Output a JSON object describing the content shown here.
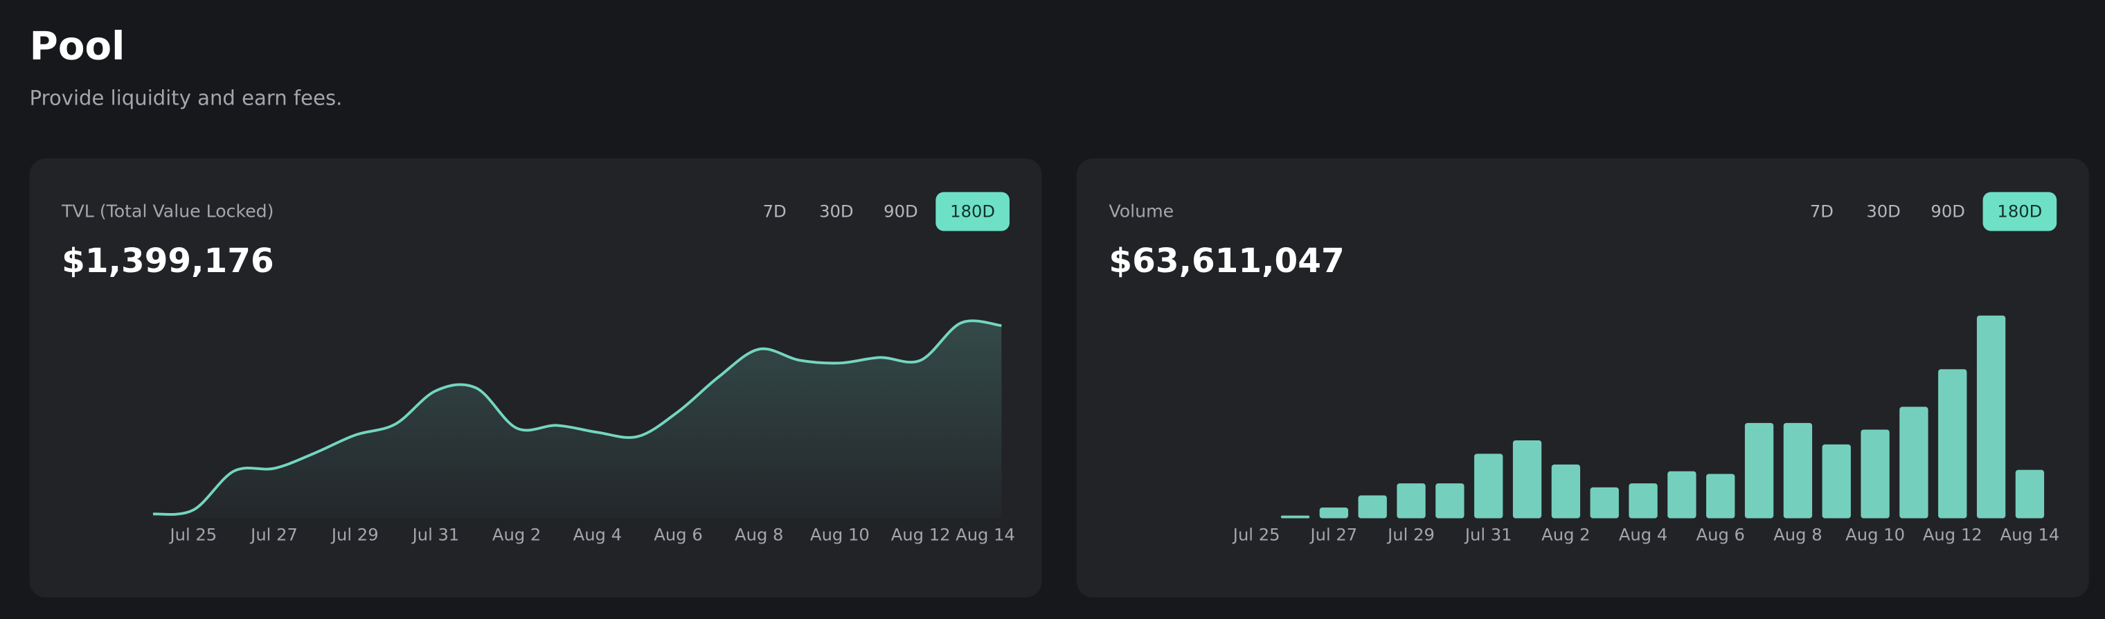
{
  "header": {
    "title": "Pool",
    "subtitle": "Provide liquidity and earn fees."
  },
  "cards": [
    {
      "title": "TVL (Total Value Locked)",
      "value": "$1,399,176",
      "ranges": [
        "7D",
        "30D",
        "90D",
        "180D"
      ],
      "active_range": 3,
      "chart_data": {
        "type": "line",
        "categories": [
          null,
          "Jul 25",
          null,
          "Jul 27",
          null,
          "Jul 29",
          null,
          "Jul 31",
          null,
          "Aug 2",
          null,
          "Aug 4",
          null,
          "Aug 6",
          null,
          "Aug 8",
          null,
          "Aug 10",
          null,
          "Aug 12",
          null,
          "Aug 14"
        ],
        "values": [
          30000,
          60000,
          340000,
          360000,
          470000,
          600000,
          680000,
          920000,
          940000,
          650000,
          670000,
          620000,
          590000,
          770000,
          1020000,
          1220000,
          1140000,
          1120000,
          1160000,
          1140000,
          1410000,
          1390000
        ],
        "ylim": [
          0,
          1550000
        ],
        "color": "#74d6c0"
      }
    },
    {
      "title": "Volume",
      "value": "$63,611,047",
      "ranges": [
        "7D",
        "30D",
        "90D",
        "180D"
      ],
      "active_range": 3,
      "chart_data": {
        "type": "bar",
        "categories": [
          "Jul 25",
          null,
          "Jul 27",
          null,
          "Jul 29",
          null,
          "Jul 31",
          null,
          "Aug 2",
          null,
          "Aug 4",
          null,
          "Aug 6",
          null,
          "Aug 8",
          null,
          "Aug 10",
          null,
          "Aug 12",
          null,
          "Aug 14"
        ],
        "values": [
          0,
          120000,
          480000,
          1020000,
          1560000,
          1560000,
          2880000,
          3480000,
          2400000,
          1380000,
          1560000,
          2100000,
          1980000,
          4260000,
          4260000,
          3300000,
          3960000,
          4980000,
          6660000,
          9060000,
          2160000
        ],
        "ylim": [
          0,
          9600000
        ],
        "color": "#74d0bd"
      }
    }
  ]
}
